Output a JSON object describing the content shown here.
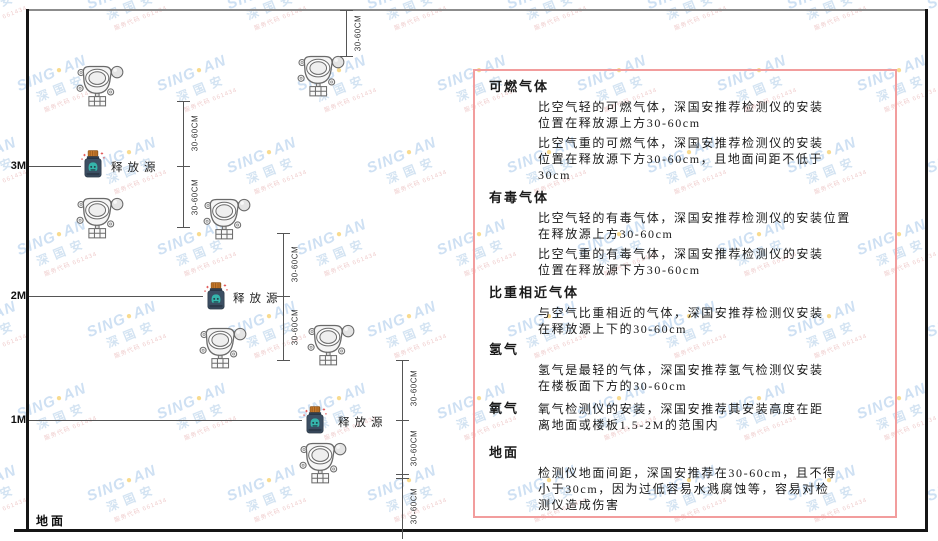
{
  "colors": {
    "panel_border": "#f29d9d",
    "watermark_blue": "#9fc3e8",
    "watermark_dot": "#f2b824",
    "watermark_red": "#e09999",
    "line_ink": "#555555"
  },
  "watermark": {
    "brand_left": "SING",
    "brand_dot": "●",
    "brand_right": "AN",
    "company": "深国安",
    "code": "服务代码 661434"
  },
  "diagram": {
    "release_source_label": "释放源",
    "dim_label": "30-60CM",
    "ground_label": "地面",
    "levels": [
      {
        "label": "3M"
      },
      {
        "label": "2M"
      },
      {
        "label": "1M"
      }
    ]
  },
  "panel": {
    "sections": [
      {
        "heading": "可燃气体",
        "paras": [
          [
            "比空气轻的可燃气体，深国安推荐检测仪的安装",
            "位置在释放源上方30-60cm"
          ],
          [
            "比空气重的可燃气体，深国安推荐检测仪的安装",
            "位置在释放源下方30-60cm，且地面间距不低于",
            "30cm"
          ]
        ]
      },
      {
        "heading": "有毒气体",
        "paras": [
          [
            "比空气轻的有毒气体，深国安推荐检测仪的安装位置",
            "在释放源上方30-60cm"
          ],
          [
            "比空气重的有毒气体，深国安推荐检测仪的安装",
            "位置在释放源下方30-60cm"
          ]
        ]
      },
      {
        "heading": "比重相近气体",
        "paras": [
          [
            "与空气比重相近的气体，深国安推荐检测仪安装",
            "在释放源上下的30-60cm"
          ]
        ]
      },
      {
        "heading": "氢气",
        "paras": [
          [
            "氢气是最轻的气体，深国安推荐氢气检测仪安装",
            "在楼板面下方的30-60cm"
          ]
        ]
      },
      {
        "heading": "氧气",
        "paras": [
          [
            "氧气检测仪的安装，深国安推荐其安装高度在距",
            "离地面或楼板1.5-2M的范围内"
          ]
        ]
      },
      {
        "heading": "地面",
        "paras": [
          [
            "检测仪地面间距，深国安推荐在30-60cm，且不得",
            "小于30cm，因为过低容易水溅腐蚀等，容易对检",
            "测仪造成伤害"
          ]
        ]
      }
    ]
  }
}
